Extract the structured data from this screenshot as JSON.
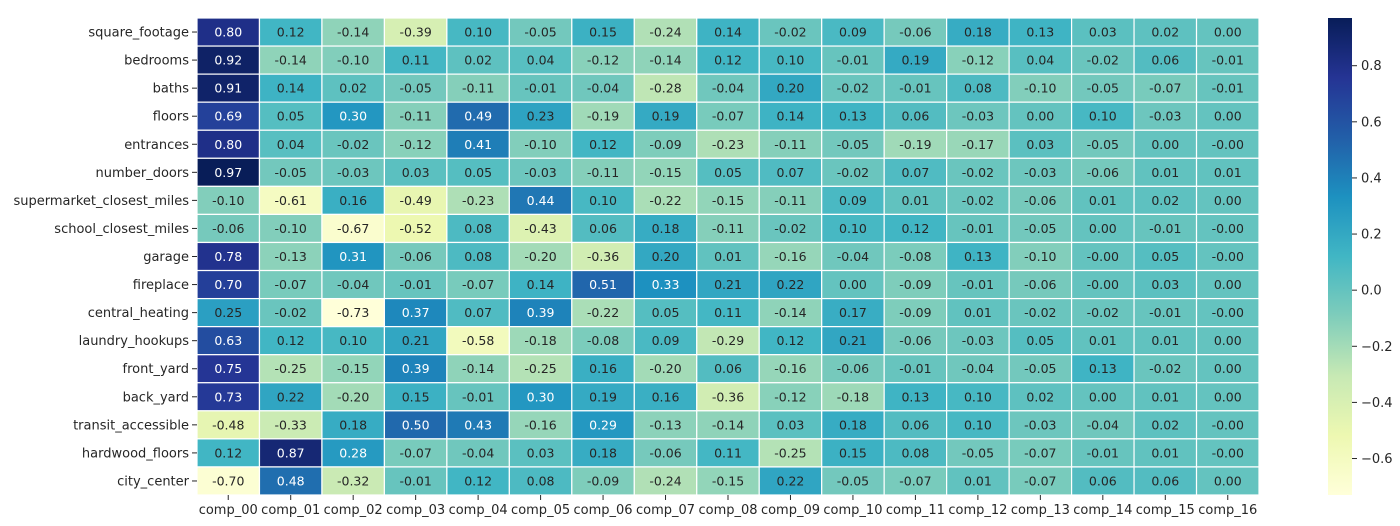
{
  "chart_data": {
    "type": "heatmap",
    "title": "",
    "xlabel": "",
    "ylabel": "",
    "rows": [
      "square_footage",
      "bedrooms",
      "baths",
      "floors",
      "entrances",
      "number_doors",
      "supermarket_closest_miles",
      "school_closest_miles",
      "garage",
      "fireplace",
      "central_heating",
      "laundry_hookups",
      "front_yard",
      "back_yard",
      "transit_accessible",
      "hardwood_floors",
      "city_center"
    ],
    "columns": [
      "comp_00",
      "comp_01",
      "comp_02",
      "comp_03",
      "comp_04",
      "comp_05",
      "comp_06",
      "comp_07",
      "comp_08",
      "comp_09",
      "comp_10",
      "comp_11",
      "comp_12",
      "comp_13",
      "comp_14",
      "comp_15",
      "comp_16"
    ],
    "values": [
      [
        0.8,
        0.12,
        -0.14,
        -0.39,
        0.1,
        -0.05,
        0.15,
        -0.24,
        0.14,
        -0.02,
        0.09,
        -0.06,
        0.18,
        0.13,
        0.03,
        0.02,
        0.0
      ],
      [
        0.92,
        -0.14,
        -0.1,
        0.11,
        0.02,
        0.04,
        -0.12,
        -0.14,
        0.12,
        0.1,
        -0.01,
        0.19,
        -0.12,
        0.04,
        -0.02,
        0.06,
        -0.01
      ],
      [
        0.91,
        0.14,
        0.02,
        -0.05,
        -0.11,
        -0.01,
        -0.04,
        -0.28,
        -0.04,
        0.2,
        -0.02,
        -0.01,
        0.08,
        -0.1,
        -0.05,
        -0.07,
        -0.01
      ],
      [
        0.69,
        0.05,
        0.3,
        -0.11,
        0.49,
        0.23,
        -0.19,
        0.19,
        -0.07,
        0.14,
        0.13,
        0.06,
        -0.03,
        0.0,
        0.1,
        -0.03,
        0.0
      ],
      [
        0.8,
        0.04,
        -0.02,
        -0.12,
        0.41,
        -0.1,
        0.12,
        -0.09,
        -0.23,
        -0.11,
        -0.05,
        -0.19,
        -0.17,
        0.03,
        -0.05,
        0.0,
        -0.0
      ],
      [
        0.97,
        -0.05,
        -0.03,
        0.03,
        0.05,
        -0.03,
        -0.11,
        -0.15,
        0.05,
        0.07,
        -0.02,
        0.07,
        -0.02,
        -0.03,
        -0.06,
        0.01,
        0.01
      ],
      [
        -0.1,
        -0.61,
        0.16,
        -0.49,
        -0.23,
        0.44,
        0.1,
        -0.22,
        -0.15,
        -0.11,
        0.09,
        0.01,
        -0.02,
        -0.06,
        0.01,
        0.02,
        0.0
      ],
      [
        -0.06,
        -0.1,
        -0.67,
        -0.52,
        0.08,
        -0.43,
        0.06,
        0.18,
        -0.11,
        -0.02,
        0.1,
        0.12,
        -0.01,
        -0.05,
        0.0,
        -0.01,
        -0.0
      ],
      [
        0.78,
        -0.13,
        0.31,
        -0.06,
        0.08,
        -0.2,
        -0.36,
        0.2,
        0.01,
        -0.16,
        -0.04,
        -0.08,
        0.13,
        -0.1,
        -0.0,
        0.05,
        -0.0
      ],
      [
        0.7,
        -0.07,
        -0.04,
        -0.01,
        -0.07,
        0.14,
        0.51,
        0.33,
        0.21,
        0.22,
        0.0,
        -0.09,
        -0.01,
        -0.06,
        -0.0,
        0.03,
        0.0
      ],
      [
        0.25,
        -0.02,
        -0.73,
        0.37,
        0.07,
        0.39,
        -0.22,
        0.05,
        0.11,
        -0.14,
        0.17,
        -0.09,
        0.01,
        -0.02,
        -0.02,
        -0.01,
        -0.0
      ],
      [
        0.63,
        0.12,
        0.1,
        0.21,
        -0.58,
        -0.18,
        -0.08,
        0.09,
        -0.29,
        0.12,
        0.21,
        -0.06,
        -0.03,
        0.05,
        0.01,
        0.01,
        0.0
      ],
      [
        0.75,
        -0.25,
        -0.15,
        0.39,
        -0.14,
        -0.25,
        0.16,
        -0.2,
        0.06,
        -0.16,
        -0.06,
        -0.01,
        -0.04,
        -0.05,
        0.13,
        -0.02,
        0.0
      ],
      [
        0.73,
        0.22,
        -0.2,
        0.15,
        -0.01,
        0.3,
        0.19,
        0.16,
        -0.36,
        -0.12,
        -0.18,
        0.13,
        0.1,
        0.02,
        0.0,
        0.01,
        0.0
      ],
      [
        -0.48,
        -0.33,
        0.18,
        0.5,
        0.43,
        -0.16,
        0.29,
        -0.13,
        -0.14,
        0.03,
        0.18,
        0.06,
        0.1,
        -0.03,
        -0.04,
        0.02,
        -0.0
      ],
      [
        0.12,
        0.87,
        0.28,
        -0.07,
        -0.04,
        0.03,
        0.18,
        -0.06,
        0.11,
        -0.25,
        0.15,
        0.08,
        -0.05,
        -0.07,
        -0.01,
        0.01,
        -0.0
      ],
      [
        -0.7,
        0.48,
        -0.32,
        -0.01,
        0.12,
        0.08,
        -0.09,
        -0.24,
        -0.15,
        0.22,
        -0.05,
        -0.07,
        0.01,
        -0.07,
        0.06,
        0.06,
        0.0
      ]
    ],
    "value_labels": [
      [
        "0.80",
        "0.12",
        "-0.14",
        "-0.39",
        "0.10",
        "-0.05",
        "0.15",
        "-0.24",
        "0.14",
        "-0.02",
        "0.09",
        "-0.06",
        "0.18",
        "0.13",
        "0.03",
        "0.02",
        "0.00"
      ],
      [
        "0.92",
        "-0.14",
        "-0.10",
        "0.11",
        "0.02",
        "0.04",
        "-0.12",
        "-0.14",
        "0.12",
        "0.10",
        "-0.01",
        "0.19",
        "-0.12",
        "0.04",
        "-0.02",
        "0.06",
        "-0.01"
      ],
      [
        "0.91",
        "0.14",
        "0.02",
        "-0.05",
        "-0.11",
        "-0.01",
        "-0.04",
        "-0.28",
        "-0.04",
        "0.20",
        "-0.02",
        "-0.01",
        "0.08",
        "-0.10",
        "-0.05",
        "-0.07",
        "-0.01"
      ],
      [
        "0.69",
        "0.05",
        "0.30",
        "-0.11",
        "0.49",
        "0.23",
        "-0.19",
        "0.19",
        "-0.07",
        "0.14",
        "0.13",
        "0.06",
        "-0.03",
        "0.00",
        "0.10",
        "-0.03",
        "0.00"
      ],
      [
        "0.80",
        "0.04",
        "-0.02",
        "-0.12",
        "0.41",
        "-0.10",
        "0.12",
        "-0.09",
        "-0.23",
        "-0.11",
        "-0.05",
        "-0.19",
        "-0.17",
        "0.03",
        "-0.05",
        "0.00",
        "-0.00"
      ],
      [
        "0.97",
        "-0.05",
        "-0.03",
        "0.03",
        "0.05",
        "-0.03",
        "-0.11",
        "-0.15",
        "0.05",
        "0.07",
        "-0.02",
        "0.07",
        "-0.02",
        "-0.03",
        "-0.06",
        "0.01",
        "0.01"
      ],
      [
        "-0.10",
        "-0.61",
        "0.16",
        "-0.49",
        "-0.23",
        "0.44",
        "0.10",
        "-0.22",
        "-0.15",
        "-0.11",
        "0.09",
        "0.01",
        "-0.02",
        "-0.06",
        "0.01",
        "0.02",
        "0.00"
      ],
      [
        "-0.06",
        "-0.10",
        "-0.67",
        "-0.52",
        "0.08",
        "-0.43",
        "0.06",
        "0.18",
        "-0.11",
        "-0.02",
        "0.10",
        "0.12",
        "-0.01",
        "-0.05",
        "0.00",
        "-0.01",
        "-0.00"
      ],
      [
        "0.78",
        "-0.13",
        "0.31",
        "-0.06",
        "0.08",
        "-0.20",
        "-0.36",
        "0.20",
        "0.01",
        "-0.16",
        "-0.04",
        "-0.08",
        "0.13",
        "-0.10",
        "-0.00",
        "0.05",
        "-0.00"
      ],
      [
        "0.70",
        "-0.07",
        "-0.04",
        "-0.01",
        "-0.07",
        "0.14",
        "0.51",
        "0.33",
        "0.21",
        "0.22",
        "0.00",
        "-0.09",
        "-0.01",
        "-0.06",
        "-0.00",
        "0.03",
        "0.00"
      ],
      [
        "0.25",
        "-0.02",
        "-0.73",
        "0.37",
        "0.07",
        "0.39",
        "-0.22",
        "0.05",
        "0.11",
        "-0.14",
        "0.17",
        "-0.09",
        "0.01",
        "-0.02",
        "-0.02",
        "-0.01",
        "-0.00"
      ],
      [
        "0.63",
        "0.12",
        "0.10",
        "0.21",
        "-0.58",
        "-0.18",
        "-0.08",
        "0.09",
        "-0.29",
        "0.12",
        "0.21",
        "-0.06",
        "-0.03",
        "0.05",
        "0.01",
        "0.01",
        "0.00"
      ],
      [
        "0.75",
        "-0.25",
        "-0.15",
        "0.39",
        "-0.14",
        "-0.25",
        "0.16",
        "-0.20",
        "0.06",
        "-0.16",
        "-0.06",
        "-0.01",
        "-0.04",
        "-0.05",
        "0.13",
        "-0.02",
        "0.00"
      ],
      [
        "0.73",
        "0.22",
        "-0.20",
        "0.15",
        "-0.01",
        "0.30",
        "0.19",
        "0.16",
        "-0.36",
        "-0.12",
        "-0.18",
        "0.13",
        "0.10",
        "0.02",
        "0.00",
        "0.01",
        "0.00"
      ],
      [
        "-0.48",
        "-0.33",
        "0.18",
        "0.50",
        "0.43",
        "-0.16",
        "0.29",
        "-0.13",
        "-0.14",
        "0.03",
        "0.18",
        "0.06",
        "0.10",
        "-0.03",
        "-0.04",
        "0.02",
        "-0.00"
      ],
      [
        "0.12",
        "0.87",
        "0.28",
        "-0.07",
        "-0.04",
        "0.03",
        "0.18",
        "-0.06",
        "0.11",
        "-0.25",
        "0.15",
        "0.08",
        "-0.05",
        "-0.07",
        "-0.01",
        "0.01",
        "-0.00"
      ],
      [
        "-0.70",
        "0.48",
        "-0.32",
        "-0.01",
        "0.12",
        "0.08",
        "-0.09",
        "-0.24",
        "-0.15",
        "0.22",
        "-0.05",
        "-0.07",
        "0.01",
        "-0.07",
        "0.06",
        "0.06",
        "0.00"
      ]
    ],
    "colorbar": {
      "min": -0.73,
      "max": 0.97,
      "ticks": [
        -0.6,
        -0.4,
        -0.2,
        0.0,
        0.2,
        0.4,
        0.6,
        0.8
      ],
      "tick_labels": [
        "−0.6",
        "−0.4",
        "−0.2",
        "0.0",
        "0.2",
        "0.4",
        "0.6",
        "0.8"
      ]
    },
    "colormap": "YlGnBu",
    "colormap_stops": [
      "#ffffd9",
      "#edf8b1",
      "#c7e9b4",
      "#7fcdbb",
      "#41b6c4",
      "#1d91c0",
      "#225ea8",
      "#253494",
      "#081d58"
    ],
    "cell_separator_color": "#ffffff",
    "text_dark_color": "#262626",
    "text_light_color": "#ffffff",
    "tick_label_color": "#262626",
    "grid": false,
    "legend": "colorbar-right"
  }
}
